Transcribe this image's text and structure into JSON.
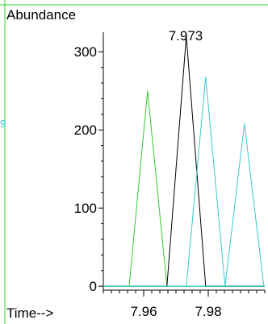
{
  "chart_data": {
    "type": "line",
    "title": "",
    "ylabel": "Abundance",
    "xlabel": "Time-->",
    "peak_label": "7.973",
    "left_marker_text": "9",
    "xlim": [
      7.9475,
      7.9975
    ],
    "ylim": [
      -5,
      325
    ],
    "x_ticks": [
      {
        "value": 7.96,
        "label": "7.96"
      },
      {
        "value": 7.98,
        "label": "7.98"
      }
    ],
    "y_ticks": [
      {
        "value": 0,
        "label": "0"
      },
      {
        "value": 100,
        "label": "100"
      },
      {
        "value": 200,
        "label": "200"
      },
      {
        "value": 300,
        "label": "300"
      }
    ],
    "series": [
      {
        "color": "#33cc33",
        "x": [
          7.9475,
          7.9555,
          7.9612,
          7.9672,
          7.9975
        ],
        "y": [
          0,
          0,
          250,
          0,
          0
        ]
      },
      {
        "color": "#000000",
        "x": [
          7.9475,
          7.9672,
          7.9732,
          7.9792,
          7.9975
        ],
        "y": [
          0,
          0,
          320,
          0,
          0
        ]
      },
      {
        "color": "#33cccc",
        "x": [
          7.9475,
          7.9732,
          7.9792,
          7.9852,
          7.9975
        ],
        "y": [
          0,
          0,
          268,
          0,
          0
        ]
      },
      {
        "color": "#33cccc",
        "x": [
          7.9475,
          7.9852,
          7.9912,
          7.9972,
          7.9975
        ],
        "y": [
          0,
          0,
          208,
          0,
          0
        ]
      }
    ]
  }
}
